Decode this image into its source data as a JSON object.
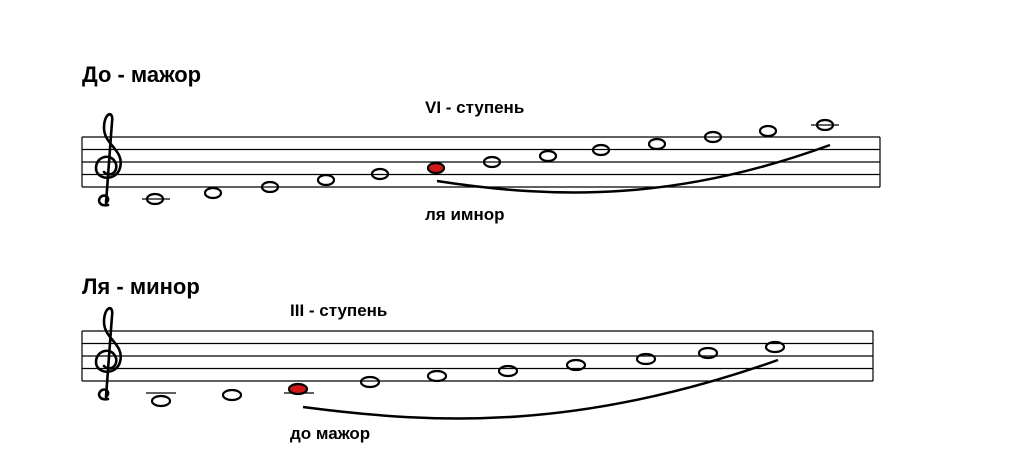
{
  "sections": [
    {
      "title": "До - мажор",
      "degree_label": "VI - ступень",
      "relative_label": "ля имнор"
    },
    {
      "title": "Ля - минор",
      "degree_label": "III - ступень",
      "relative_label": "до мажор"
    }
  ]
}
